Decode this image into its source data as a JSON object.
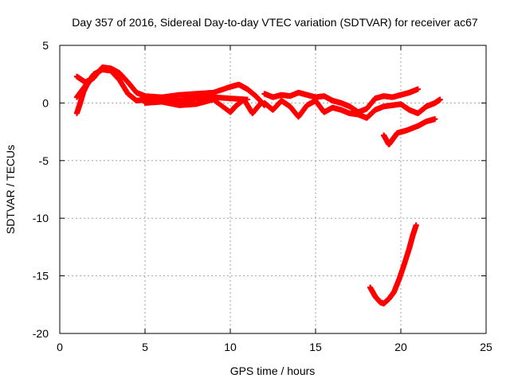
{
  "chart_data": {
    "type": "scatter",
    "title": "Day 357 of 2016, Sidereal Day-to-day VTEC variation (SDTVAR) for receiver ac67",
    "xlabel": "GPS time / hours",
    "ylabel": "SDTVAR / TECUs",
    "xlim": [
      0,
      25
    ],
    "ylim": [
      -20,
      5
    ],
    "xticks": [
      0,
      5,
      10,
      15,
      20,
      25
    ],
    "yticks": [
      5,
      0,
      -5,
      -10,
      -15,
      -20
    ],
    "grid": true,
    "marker": "plus",
    "colors": {
      "series": "#ff0000",
      "grid": "#a0a0a0",
      "axis": "#000000"
    },
    "series": [
      {
        "name": "track-1",
        "x": [
          1.0,
          1.5,
          2.0,
          2.5,
          3.0,
          3.5,
          4.0,
          4.5,
          5.0,
          6.0,
          7.0,
          8.0,
          9.0,
          10.0,
          10.5,
          11.0,
          11.5,
          12.0
        ],
        "y": [
          2.3,
          1.8,
          2.2,
          3.1,
          3.0,
          2.6,
          1.8,
          0.9,
          0.6,
          0.5,
          0.7,
          0.8,
          0.9,
          1.4,
          1.6,
          1.2,
          0.6,
          -0.2
        ]
      },
      {
        "name": "track-2",
        "x": [
          1.0,
          1.5,
          2.0,
          2.5,
          3.0,
          3.5,
          4.0,
          4.5,
          5.0,
          5.5,
          6.0,
          7.0,
          8.0,
          9.0,
          10.0,
          11.0
        ],
        "y": [
          0.5,
          1.5,
          2.5,
          2.9,
          2.8,
          2.0,
          0.8,
          0.2,
          0.3,
          0.4,
          0.3,
          0.2,
          0.4,
          0.5,
          0.4,
          0.3
        ]
      },
      {
        "name": "track-3",
        "x": [
          1.0,
          1.2,
          1.4,
          1.6,
          1.8,
          2.0
        ],
        "y": [
          -0.9,
          0.0,
          1.0,
          1.6,
          2.0,
          2.2
        ]
      },
      {
        "name": "track-4",
        "x": [
          5.0,
          6.0,
          7.0,
          8.0,
          9.0,
          10.0,
          10.3,
          10.8,
          11.3,
          11.8
        ],
        "y": [
          0.0,
          0.1,
          -0.2,
          -0.1,
          0.3,
          -0.8,
          -0.3,
          0.3,
          -0.9,
          0.0
        ]
      },
      {
        "name": "track-5",
        "x": [
          12.0,
          12.5,
          13.0,
          13.5,
          14.0,
          14.5,
          15.0,
          15.5,
          16.0,
          16.5,
          17.0,
          17.5,
          18.0,
          18.5,
          19.0,
          19.5,
          20.0,
          20.5,
          21.0
        ],
        "y": [
          0.8,
          0.5,
          0.7,
          0.6,
          0.9,
          0.7,
          0.5,
          0.6,
          0.2,
          0.0,
          -0.3,
          -0.8,
          -0.5,
          0.4,
          0.6,
          0.5,
          0.7,
          0.9,
          1.2
        ]
      },
      {
        "name": "track-6",
        "x": [
          12.0,
          12.5,
          13.0,
          13.5,
          14.0,
          14.5,
          15.0,
          15.5,
          16.0,
          16.5,
          17.0,
          17.5,
          18.0,
          18.5,
          19.0,
          19.5,
          20.0,
          20.5,
          21.0,
          21.5,
          22.0,
          22.3
        ],
        "y": [
          0.0,
          -0.6,
          0.2,
          -0.3,
          -1.2,
          -0.2,
          0.2,
          -0.8,
          -0.4,
          -0.6,
          -0.9,
          -1.0,
          -1.3,
          -0.6,
          -0.3,
          -0.2,
          -0.1,
          -0.6,
          -0.9,
          -0.3,
          0.0,
          0.3
        ]
      },
      {
        "name": "track-7",
        "x": [
          19.0,
          19.3,
          19.5,
          19.8,
          20.3,
          21.0,
          21.5,
          22.0
        ],
        "y": [
          -2.8,
          -3.6,
          -3.2,
          -2.6,
          -2.4,
          -2.0,
          -1.6,
          -1.4
        ]
      },
      {
        "name": "track-8",
        "x": [
          18.2,
          18.5,
          18.8,
          19.0,
          19.3,
          19.6,
          19.9,
          20.2,
          20.5,
          20.7,
          20.9
        ],
        "y": [
          -16.0,
          -16.8,
          -17.3,
          -17.4,
          -17.0,
          -16.4,
          -15.3,
          -14.0,
          -12.6,
          -11.5,
          -10.6
        ]
      }
    ]
  }
}
